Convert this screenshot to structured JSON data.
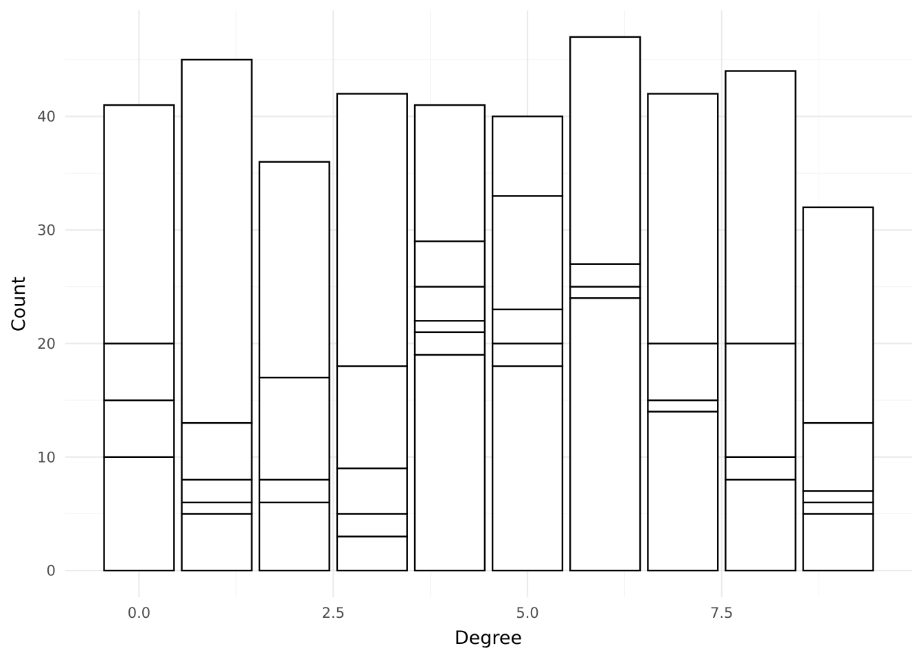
{
  "chart_data": {
    "type": "bar",
    "subtype": "stacked-histogram",
    "xlabel": "Degree",
    "ylabel": "Count",
    "x_ticks": [
      {
        "value": 0.0,
        "label": "0.0"
      },
      {
        "value": 2.5,
        "label": "2.5"
      },
      {
        "value": 5.0,
        "label": "5.0"
      },
      {
        "value": 7.5,
        "label": "7.5"
      }
    ],
    "y_ticks": [
      {
        "value": 0,
        "label": "0"
      },
      {
        "value": 10,
        "label": "10"
      },
      {
        "value": 20,
        "label": "20"
      },
      {
        "value": 30,
        "label": "30"
      },
      {
        "value": 40,
        "label": "40"
      }
    ],
    "xlim": [
      -0.95,
      9.95
    ],
    "ylim": [
      -2.35,
      49.35
    ],
    "grid": true,
    "bar_width": 0.9,
    "bars": [
      {
        "x": 0,
        "total": 41,
        "boundaries": [
          10,
          15,
          20,
          41
        ]
      },
      {
        "x": 1,
        "total": 45,
        "boundaries": [
          5,
          6,
          8,
          13,
          45
        ]
      },
      {
        "x": 2,
        "total": 36,
        "boundaries": [
          6,
          8,
          17,
          36
        ]
      },
      {
        "x": 3,
        "total": 42,
        "boundaries": [
          3,
          5,
          9,
          18,
          42
        ]
      },
      {
        "x": 4,
        "total": 41,
        "boundaries": [
          19,
          21,
          22,
          25,
          29,
          41
        ]
      },
      {
        "x": 5,
        "total": 40,
        "boundaries": [
          18,
          20,
          23,
          33,
          40
        ]
      },
      {
        "x": 6,
        "total": 47,
        "boundaries": [
          24,
          25,
          27,
          47
        ]
      },
      {
        "x": 7,
        "total": 42,
        "boundaries": [
          14,
          15,
          20,
          42
        ]
      },
      {
        "x": 8,
        "total": 44,
        "boundaries": [
          8,
          10,
          20,
          44
        ]
      },
      {
        "x": 9,
        "total": 32,
        "boundaries": [
          5,
          6,
          7,
          13,
          32
        ]
      }
    ]
  }
}
